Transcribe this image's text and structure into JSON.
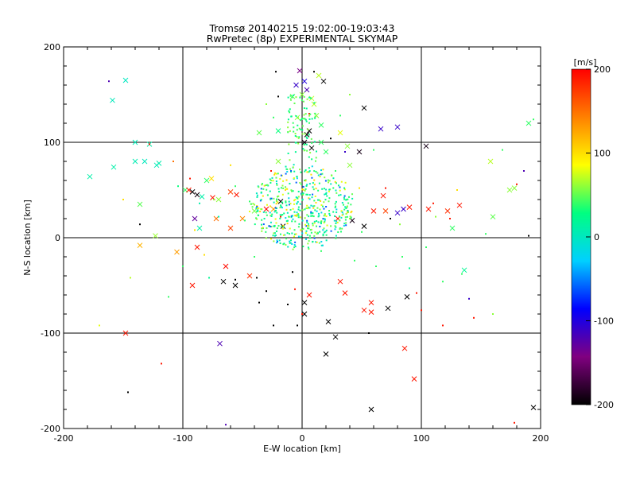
{
  "chart_data": {
    "type": "scatter",
    "title": "Tromsø 20140215 19:02:00-19:03:43",
    "subtitle": "RwPretec (8p) EXPERIMENTAL SKYMAP",
    "xlabel": "E-W location [km]",
    "ylabel": "N-S location [km]",
    "xlim": [
      -200,
      200
    ],
    "ylim": [
      -200,
      200
    ],
    "xticks": [
      "-200",
      "-100",
      "0",
      "100",
      "200"
    ],
    "yticks": [
      "-200",
      "-100",
      "0",
      "100",
      "200"
    ],
    "grid": true,
    "colorbar": {
      "label": "[m/s]",
      "range": [
        -200,
        200
      ],
      "ticks": [
        "-200",
        "-100",
        "0",
        "100",
        "200"
      ],
      "colormap": [
        "#000000",
        "#800080",
        "#0000ff",
        "#00d0ff",
        "#00ff80",
        "#ffff00",
        "#ff8000",
        "#ff0000"
      ]
    },
    "points_x": [
      [
        -159,
        144,
        2
      ],
      [
        -148,
        165,
        0
      ],
      [
        -140,
        100,
        4
      ],
      [
        -140,
        80,
        6
      ],
      [
        -132,
        80,
        2
      ],
      [
        -122,
        76,
        3
      ],
      [
        -178,
        64,
        10
      ],
      [
        -158,
        74,
        10
      ],
      [
        -128,
        98,
        9
      ],
      [
        -120,
        78,
        8
      ],
      [
        -136,
        35,
        48
      ],
      [
        -123,
        2,
        63
      ],
      [
        -136,
        -8,
        120
      ],
      [
        -105,
        -15,
        130
      ],
      [
        -98,
        50,
        40
      ],
      [
        -92,
        48,
        -200
      ],
      [
        -88,
        45,
        -195
      ],
      [
        -84,
        43,
        10
      ],
      [
        -76,
        62,
        100
      ],
      [
        -90,
        20,
        -130
      ],
      [
        -70,
        40,
        60
      ],
      [
        -60,
        48,
        170
      ],
      [
        -50,
        20,
        140
      ],
      [
        -40,
        28,
        55
      ],
      [
        -30,
        30,
        200
      ],
      [
        -55,
        45,
        190
      ],
      [
        -72,
        20,
        150
      ],
      [
        -86,
        10,
        10
      ],
      [
        -92,
        -50,
        190
      ],
      [
        -88,
        -10,
        190
      ],
      [
        -64,
        -30,
        195
      ],
      [
        -56,
        -50,
        -200
      ],
      [
        -44,
        -40,
        180
      ],
      [
        -148,
        -100,
        190
      ],
      [
        -69,
        -111,
        -120
      ],
      [
        -80,
        60,
        40
      ],
      [
        -60,
        10,
        170
      ],
      [
        -36,
        110,
        50
      ],
      [
        -20,
        80,
        60
      ],
      [
        -20,
        112,
        30
      ],
      [
        -24,
        30,
        130
      ],
      [
        -18,
        38,
        -200
      ],
      [
        -16,
        12,
        -195
      ],
      [
        -5,
        160,
        -110
      ],
      [
        -2,
        175,
        -140
      ],
      [
        2,
        164,
        -100
      ],
      [
        4,
        155,
        -120
      ],
      [
        8,
        146,
        70
      ],
      [
        14,
        170,
        70
      ],
      [
        18,
        164,
        -200
      ],
      [
        12,
        128,
        60
      ],
      [
        6,
        112,
        -200
      ],
      [
        4,
        108,
        -200
      ],
      [
        2,
        100,
        -190
      ],
      [
        8,
        94,
        -200
      ],
      [
        -4,
        126,
        60
      ],
      [
        0,
        150,
        60
      ],
      [
        10,
        140,
        70
      ],
      [
        16,
        118,
        40
      ],
      [
        -8,
        148,
        50
      ],
      [
        16,
        100,
        40
      ],
      [
        20,
        90,
        40
      ],
      [
        32,
        110,
        80
      ],
      [
        38,
        96,
        60
      ],
      [
        52,
        136,
        -200
      ],
      [
        66,
        114,
        -110
      ],
      [
        80,
        116,
        -110
      ],
      [
        104,
        96,
        -190
      ],
      [
        48,
        90,
        -190
      ],
      [
        40,
        76,
        60
      ],
      [
        68,
        44,
        190
      ],
      [
        60,
        28,
        190
      ],
      [
        70,
        28,
        170
      ],
      [
        80,
        26,
        -110
      ],
      [
        85,
        30,
        -110
      ],
      [
        90,
        32,
        190
      ],
      [
        106,
        30,
        190
      ],
      [
        122,
        28,
        180
      ],
      [
        132,
        34,
        190
      ],
      [
        126,
        10,
        40
      ],
      [
        158,
        80,
        70
      ],
      [
        174,
        50,
        60
      ],
      [
        178,
        52,
        60
      ],
      [
        190,
        120,
        40
      ],
      [
        160,
        22,
        50
      ],
      [
        136,
        -34,
        20
      ],
      [
        94,
        -148,
        190
      ],
      [
        86,
        -116,
        190
      ],
      [
        72,
        -74,
        -200
      ],
      [
        58,
        -68,
        190
      ],
      [
        58,
        -78,
        190
      ],
      [
        52,
        -76,
        190
      ],
      [
        36,
        -58,
        190
      ],
      [
        32,
        -46,
        190
      ],
      [
        22,
        -88,
        -200
      ],
      [
        28,
        -104,
        -200
      ],
      [
        20,
        -122,
        -200
      ],
      [
        2,
        -80,
        -200
      ],
      [
        2,
        -68,
        -200
      ],
      [
        6,
        -60,
        190
      ],
      [
        88,
        -62,
        -200
      ],
      [
        58,
        -180,
        -200
      ],
      [
        194,
        -178,
        -200
      ],
      [
        52,
        12,
        -200
      ],
      [
        42,
        18,
        -190
      ],
      [
        30,
        20,
        190
      ],
      [
        -66,
        -46,
        -200
      ],
      [
        -75,
        42,
        190
      ],
      [
        -95,
        50,
        190
      ]
    ],
    "points_dot": [
      [
        -162,
        164,
        -120
      ],
      [
        -128,
        98,
        190
      ],
      [
        -136,
        14,
        -200
      ],
      [
        -170,
        -92,
        80
      ],
      [
        -146,
        -162,
        -200
      ],
      [
        -118,
        -132,
        190
      ],
      [
        -112,
        -62,
        40
      ],
      [
        -144,
        -42,
        70
      ],
      [
        -108,
        80,
        150
      ],
      [
        -104,
        54,
        30
      ],
      [
        -94,
        62,
        190
      ],
      [
        -86,
        36,
        10
      ],
      [
        -82,
        -18,
        100
      ],
      [
        -78,
        -42,
        20
      ],
      [
        -56,
        -44,
        -200
      ],
      [
        -70,
        22,
        10
      ],
      [
        -74,
        40,
        60
      ],
      [
        -64,
        -196,
        -120
      ],
      [
        -56,
        54,
        40
      ],
      [
        -48,
        18,
        40
      ],
      [
        -44,
        38,
        40
      ],
      [
        -38,
        -42,
        -200
      ],
      [
        -36,
        -68,
        -200
      ],
      [
        -24,
        -92,
        -200
      ],
      [
        -26,
        70,
        190
      ],
      [
        -24,
        126,
        40
      ],
      [
        -22,
        174,
        -200
      ],
      [
        -20,
        148,
        -200
      ],
      [
        -18,
        22,
        190
      ],
      [
        -14,
        50,
        100
      ],
      [
        -10,
        72,
        60
      ],
      [
        -8,
        -36,
        -200
      ],
      [
        -6,
        -54,
        190
      ],
      [
        -4,
        -92,
        -200
      ],
      [
        0,
        -80,
        190
      ],
      [
        2,
        60,
        40
      ],
      [
        6,
        130,
        190
      ],
      [
        12,
        12,
        40
      ],
      [
        22,
        58,
        60
      ],
      [
        28,
        70,
        40
      ],
      [
        32,
        128,
        40
      ],
      [
        36,
        90,
        -110
      ],
      [
        40,
        20,
        60
      ],
      [
        44,
        -24,
        40
      ],
      [
        48,
        52,
        100
      ],
      [
        50,
        6,
        40
      ],
      [
        56,
        -100,
        -200
      ],
      [
        62,
        -30,
        40
      ],
      [
        70,
        52,
        190
      ],
      [
        74,
        20,
        -200
      ],
      [
        82,
        14,
        60
      ],
      [
        90,
        -32,
        20
      ],
      [
        96,
        -58,
        190
      ],
      [
        100,
        -76,
        190
      ],
      [
        110,
        36,
        190
      ],
      [
        112,
        22,
        60
      ],
      [
        118,
        -92,
        190
      ],
      [
        124,
        20,
        190
      ],
      [
        130,
        50,
        100
      ],
      [
        134,
        -38,
        40
      ],
      [
        140,
        -64,
        -110
      ],
      [
        144,
        -84,
        190
      ],
      [
        154,
        4,
        40
      ],
      [
        160,
        -80,
        60
      ],
      [
        168,
        92,
        40
      ],
      [
        178,
        -194,
        190
      ],
      [
        180,
        56,
        190
      ],
      [
        186,
        70,
        -120
      ],
      [
        190,
        2,
        -200
      ],
      [
        194,
        124,
        40
      ],
      [
        -100,
        -30,
        40
      ],
      [
        -60,
        76,
        100
      ],
      [
        -40,
        -20,
        40
      ],
      [
        -30,
        -56,
        -200
      ],
      [
        -12,
        -70,
        -200
      ],
      [
        16,
        -14,
        40
      ],
      [
        24,
        104,
        -200
      ],
      [
        60,
        92,
        40
      ],
      [
        84,
        -20,
        40
      ],
      [
        104,
        -10,
        40
      ],
      [
        118,
        -46,
        40
      ],
      [
        -90,
        8,
        100
      ],
      [
        -150,
        40,
        100
      ],
      [
        -30,
        140,
        60
      ],
      [
        40,
        150,
        60
      ],
      [
        10,
        174,
        -200
      ]
    ]
  }
}
